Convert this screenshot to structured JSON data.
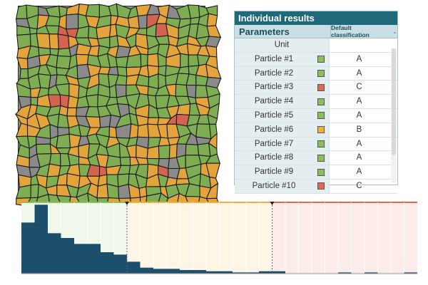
{
  "results": {
    "title": "Individual results",
    "parameters_label": "Parameters",
    "classification_label": "Default classification",
    "unit_label": "Unit",
    "classes": {
      "A": "#8fbf5a",
      "B": "#efb13c",
      "C": "#de6a52"
    },
    "particles": [
      {
        "name": "Particle #1",
        "cls": "A"
      },
      {
        "name": "Particle #2",
        "cls": "A"
      },
      {
        "name": "Particle #3",
        "cls": "C"
      },
      {
        "name": "Particle #4",
        "cls": "A"
      },
      {
        "name": "Particle #5",
        "cls": "A"
      },
      {
        "name": "Particle #6",
        "cls": "B"
      },
      {
        "name": "Particle #7",
        "cls": "A"
      },
      {
        "name": "Particle #8",
        "cls": "A"
      },
      {
        "name": "Particle #9",
        "cls": "A"
      },
      {
        "name": "Particle #10",
        "cls": "C"
      }
    ]
  },
  "micrograph": {
    "colors": {
      "A": "#7fae52",
      "B": "#e3a43c",
      "C": "#d46450",
      "background": "#8a8a8a"
    }
  },
  "chart_data": {
    "type": "bar",
    "values": [
      43,
      58,
      34,
      30,
      25,
      25,
      18,
      16,
      10,
      5,
      4,
      4,
      3,
      3,
      2,
      2,
      1,
      1,
      2,
      2,
      0,
      0,
      0,
      0,
      1,
      0,
      1,
      0,
      0,
      1
    ],
    "bar_color": "#1c4f6b",
    "ylim": [
      0,
      60
    ],
    "thresholds": [
      8,
      19
    ],
    "zones": [
      {
        "class": "A",
        "color": "#8fbf5a",
        "fill": "#f2f7ec"
      },
      {
        "class": "B",
        "color": "#efb13c",
        "fill": "#fdf6e6"
      },
      {
        "class": "C",
        "color": "#de6a52",
        "fill": "#fbecea"
      }
    ]
  }
}
